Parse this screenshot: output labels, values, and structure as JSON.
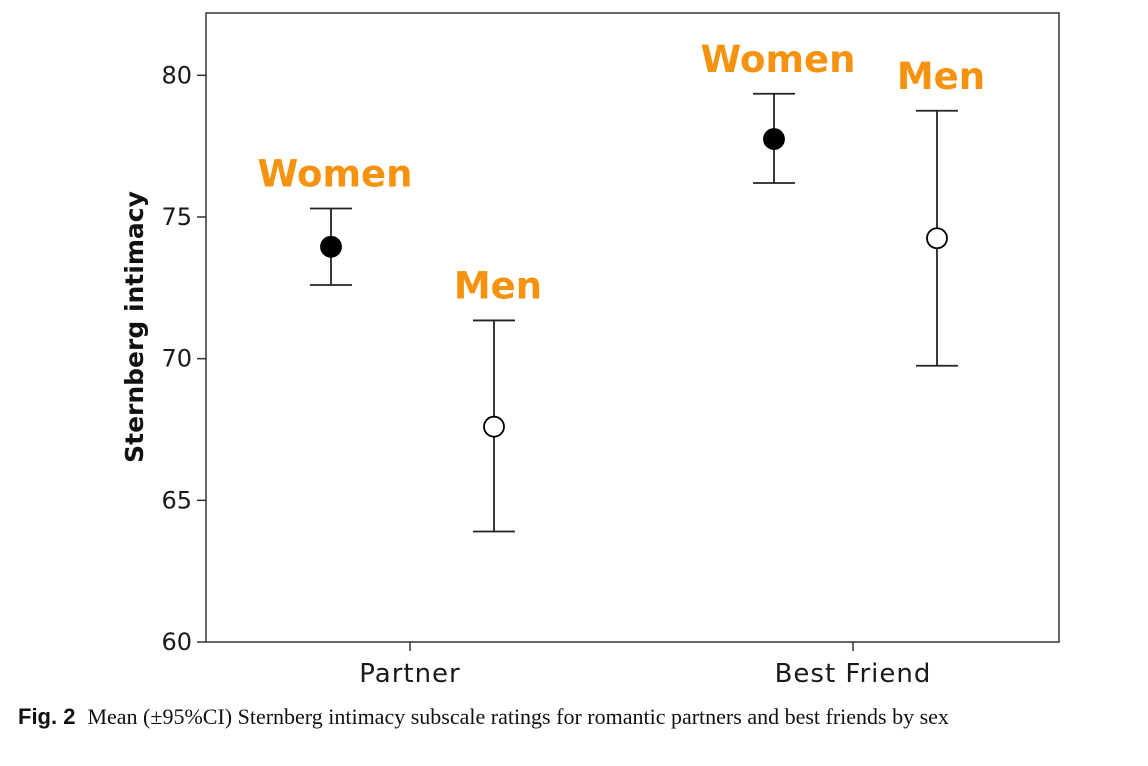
{
  "chart_data": {
    "type": "scatter",
    "ylabel": "Sternberg intimacy",
    "ylim": [
      60,
      82.2
    ],
    "yticks": [
      "60",
      "65",
      "70",
      "75",
      "80"
    ],
    "categories": [
      "Partner",
      "Best Friend"
    ],
    "series": [
      {
        "name": "Women",
        "marker": "filled-circle",
        "label_color": "#f5920f",
        "points": [
          {
            "category": "Partner",
            "mean": 73.95,
            "ci_low": 72.6,
            "ci_high": 75.3
          },
          {
            "category": "Best Friend",
            "mean": 77.75,
            "ci_low": 76.2,
            "ci_high": 79.35
          }
        ]
      },
      {
        "name": "Men",
        "marker": "open-circle",
        "label_color": "#f5920f",
        "points": [
          {
            "category": "Partner",
            "mean": 67.6,
            "ci_low": 63.9,
            "ci_high": 71.35
          },
          {
            "category": "Best Friend",
            "mean": 74.25,
            "ci_low": 69.75,
            "ci_high": 78.75
          }
        ]
      }
    ]
  },
  "caption": {
    "figure_number": "Fig. 2",
    "text": "Mean (±95%CI) Sternberg intimacy subscale ratings for romantic partners and best friends by sex"
  }
}
